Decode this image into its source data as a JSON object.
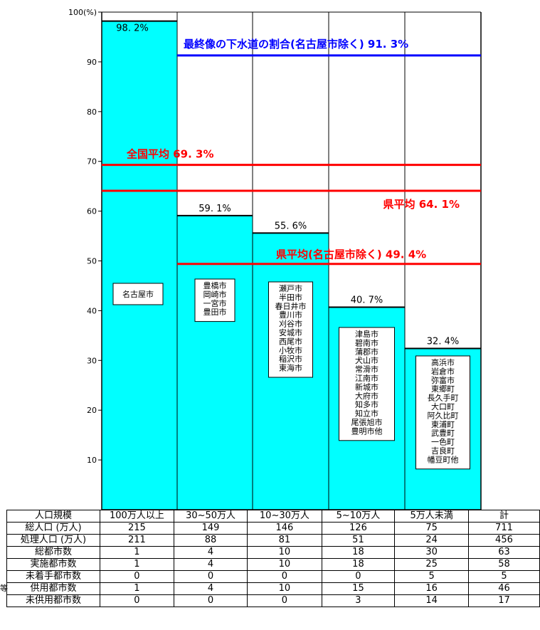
{
  "chart_data": {
    "type": "bar",
    "ylim": [
      0,
      100
    ],
    "y_ticks": [
      10,
      20,
      30,
      40,
      50,
      60,
      70,
      80,
      90
    ],
    "y_top_label": "100(%)",
    "categories": [
      "100万人以上",
      "30~50万人",
      "10~30万人",
      "5~10万人",
      "5万人未満"
    ],
    "values": [
      98.2,
      59.1,
      55.6,
      40.7,
      32.4
    ],
    "value_labels": [
      "98. 2%",
      "59. 1%",
      "55. 6%",
      "40. 7%",
      "32. 4%"
    ],
    "bar_color": "#00FFFF",
    "city_lists": [
      [
        "名古屋市"
      ],
      [
        "豊橋市",
        "岡崎市",
        "一宮市",
        "豊田市"
      ],
      [
        "瀬戸市",
        "半田市",
        "春日井市",
        "豊川市",
        "刈谷市",
        "安城市",
        "西尾市",
        "小牧市",
        "稲沢市",
        "東海市"
      ],
      [
        "津島市",
        "碧南市",
        "蒲郡市",
        "犬山市",
        "常滑市",
        "江南市",
        "新城市",
        "大府市",
        "知多市",
        "知立市",
        "尾張旭市",
        "豊明市他"
      ],
      [
        "高浜市",
        "岩倉市",
        "弥富市",
        "東郷町",
        "長久手町",
        "大口町",
        "阿久比町",
        "東浦町",
        "武豊町",
        "一色町",
        "吉良町",
        "幡豆町他"
      ]
    ],
    "reference_lines": [
      {
        "value": 91.3,
        "label": "最終像の下水道の割合(名古屋市除く) 91. 3%",
        "color": "#0000FF"
      },
      {
        "value": 69.3,
        "label": "全国平均 69. 3%",
        "color": "#FF0000"
      },
      {
        "value": 64.1,
        "label": "県平均 64. 1%",
        "color": "#FF0000"
      },
      {
        "value": 49.4,
        "label": "県平均(名古屋市除く) 49. 4%",
        "color": "#FF0000"
      }
    ]
  },
  "table": {
    "header": [
      "人口規模",
      "100万人以上",
      "30~50万人",
      "10~30万人",
      "5~10万人",
      "5万人未満",
      "計"
    ],
    "rows": [
      [
        "総人口 (万人)",
        "215",
        "149",
        "146",
        "126",
        "75",
        "711"
      ],
      [
        "処理人口 (万人)",
        "211",
        "88",
        "81",
        "51",
        "24",
        "456"
      ],
      [
        "総都市数",
        "1",
        "4",
        "10",
        "18",
        "30",
        "63"
      ],
      [
        "実施都市数",
        "1",
        "4",
        "10",
        "18",
        "25",
        "58"
      ],
      [
        "未着手都市数",
        "0",
        "0",
        "0",
        "0",
        "5",
        "5"
      ],
      [
        "供用都市数",
        "1",
        "4",
        "10",
        "15",
        "16",
        "46"
      ],
      [
        "未供用都市数",
        "0",
        "0",
        "0",
        "3",
        "14",
        "17"
      ]
    ]
  },
  "stray_text": "等"
}
